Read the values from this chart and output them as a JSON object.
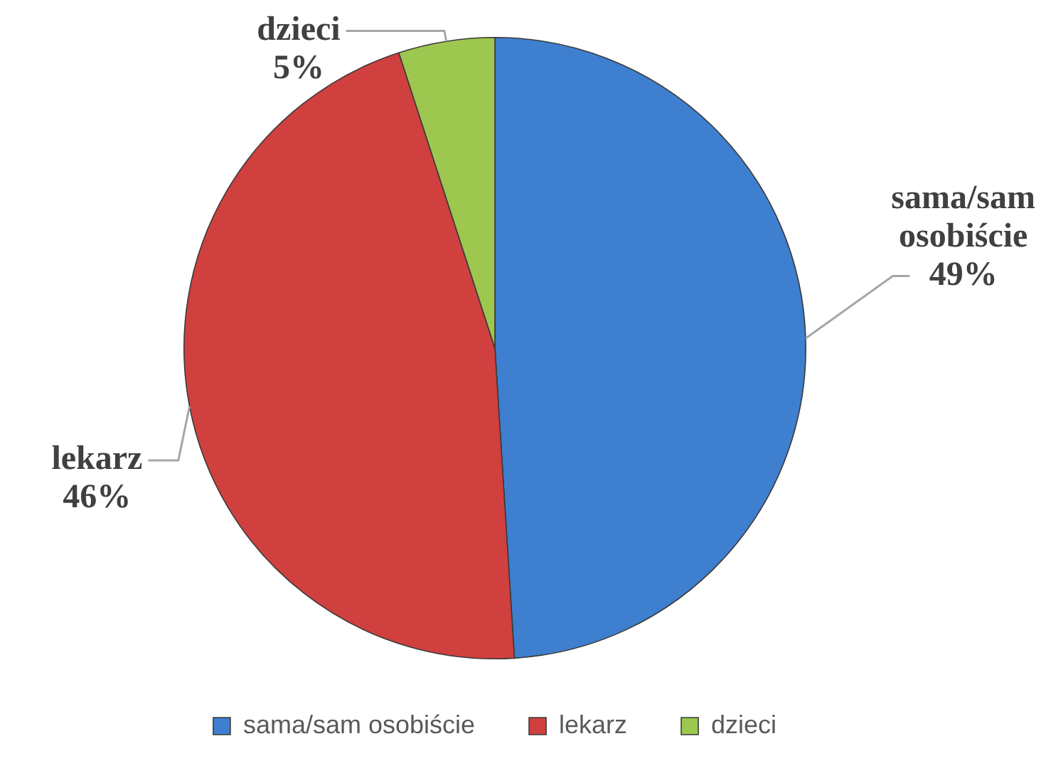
{
  "chart_data": {
    "type": "pie",
    "categories": [
      "sama/sam osobiście",
      "lekarz",
      "dzieci"
    ],
    "values": [
      49,
      46,
      5
    ],
    "value_labels": [
      "49%",
      "46%",
      "5%"
    ],
    "colors": [
      "#3e7fcf",
      "#d0403f",
      "#9dc74f"
    ],
    "legend": "bottom"
  }
}
